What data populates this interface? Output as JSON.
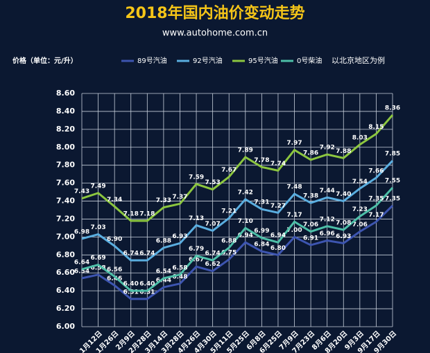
{
  "chart_data": {
    "type": "line",
    "title": "2018年国内油价变动走势",
    "subtitle": "www.autohome.com.cn",
    "y_label": "价格（单位：元/升）",
    "annotation": "以北京地区为例",
    "categories": [
      null,
      "1月12日",
      "1月26日",
      "2月9日",
      "2月28日",
      "3月14日",
      "3月28日",
      "4月26日",
      "4月30日",
      "5月11日",
      "5月25日",
      "6月8日",
      "6月25日",
      "7月9日",
      "7月23日",
      "8月6日",
      "8月20日",
      "9月3日",
      "9月17日",
      "9月30日"
    ],
    "series": [
      {
        "name": "89号汽油",
        "color": "#3d55b0",
        "values": [
          6.54,
          6.58,
          6.46,
          6.31,
          6.31,
          6.44,
          6.48,
          6.67,
          6.62,
          6.75,
          6.94,
          6.84,
          6.8,
          7.0,
          6.91,
          6.96,
          6.93,
          7.06,
          7.17,
          7.35
        ],
        "value_labels": [
          "6.54",
          "6.58",
          "6.46",
          "6.31",
          "6.31",
          "6.44",
          "6.48",
          "6.67",
          "6.62",
          "6.75",
          "6.94",
          "6.84",
          "6.80",
          "7.00",
          "6.91",
          "6.96",
          "6.93",
          "7.06",
          "7.17",
          "7.35"
        ]
      },
      {
        "name": "92号汽油",
        "color": "#5aaee0",
        "values": [
          6.98,
          7.03,
          6.9,
          6.74,
          6.74,
          6.88,
          6.93,
          7.13,
          7.07,
          7.21,
          7.42,
          7.31,
          7.27,
          7.48,
          7.38,
          7.44,
          7.4,
          7.54,
          7.66,
          7.85
        ],
        "value_labels": [
          "6.98",
          "7.03",
          "6.90",
          "6.74",
          "6.74",
          "6.88",
          "6.93",
          "7.13",
          "7.07",
          "7.21",
          "7.42",
          "7.31",
          "7.27",
          "7.48",
          "7.38",
          "7.44",
          "7.40",
          "7.54",
          "7.66",
          "7.85"
        ]
      },
      {
        "name": "95号汽油",
        "color": "#8cc63f",
        "values": [
          7.43,
          7.49,
          7.34,
          7.18,
          7.18,
          7.33,
          7.37,
          7.59,
          7.53,
          7.67,
          7.89,
          7.78,
          7.74,
          7.97,
          7.86,
          7.92,
          7.88,
          8.03,
          8.15,
          8.36
        ],
        "value_labels": [
          "7.43",
          "7.49",
          "7.34",
          "7.18",
          "7.18",
          "7.33",
          "7.37",
          "7.59",
          "7.53",
          "7.67",
          "7.89",
          "7.78",
          "7.74",
          "7.97",
          "7.86",
          "7.92",
          "7.88",
          "8.03",
          "8.15",
          "8.36"
        ]
      },
      {
        "name": "0号柴油",
        "color": "#4dbfa8",
        "values": [
          6.64,
          6.69,
          6.56,
          6.4,
          6.4,
          6.54,
          6.58,
          6.79,
          6.74,
          6.88,
          7.1,
          6.99,
          6.94,
          7.17,
          7.06,
          7.12,
          7.08,
          7.23,
          7.35,
          7.55
        ],
        "value_labels": [
          "6.64",
          "6.69",
          "6.56",
          "6.40",
          "6.40",
          "6.54",
          "6.58",
          "6.79",
          "6.74",
          "6.88",
          "7.10",
          "6.99",
          "6.94",
          "7.17",
          "7.06",
          "7.12",
          "7.08",
          "7.23",
          "7.35",
          "7.55"
        ]
      }
    ],
    "ylim": [
      6.0,
      8.6
    ],
    "yticks": [
      {
        "value": 6.0,
        "label": "6.00"
      },
      {
        "value": 6.2,
        "label": "6.20"
      },
      {
        "value": 6.4,
        "label": "6.40"
      },
      {
        "value": 6.6,
        "label": "6.60"
      },
      {
        "value": 6.8,
        "label": "6.80"
      },
      {
        "value": 7.0,
        "label": "7.00"
      },
      {
        "value": 7.2,
        "label": "7.20"
      },
      {
        "value": 7.4,
        "label": "7.40"
      },
      {
        "value": 7.6,
        "label": "7.60"
      },
      {
        "value": 7.8,
        "label": "7.80"
      },
      {
        "value": 8.0,
        "label": "8.00"
      },
      {
        "value": 8.2,
        "label": "8.20"
      },
      {
        "value": 8.4,
        "label": "8.40"
      },
      {
        "value": 8.6,
        "label": "8.60"
      }
    ],
    "grid": true
  }
}
